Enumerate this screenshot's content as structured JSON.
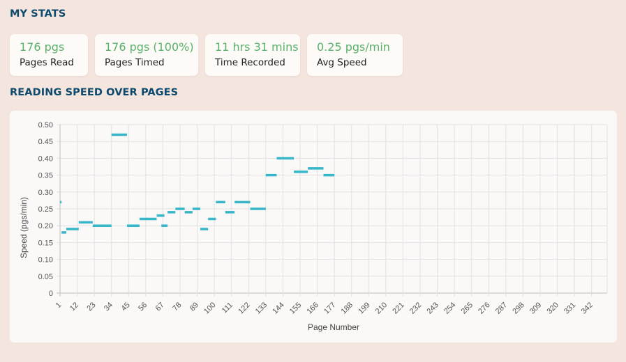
{
  "stats": {
    "title": "MY STATS",
    "cards": [
      {
        "value": "176 pgs",
        "label": "Pages Read"
      },
      {
        "value": "176 pgs (100%)",
        "label": "Pages Timed"
      },
      {
        "value": "11 hrs 31 mins",
        "label": "Time Recorded"
      },
      {
        "value": "0.25 pgs/min",
        "label": "Avg Speed"
      }
    ]
  },
  "chart_data": {
    "type": "line",
    "title": "READING SPEED OVER PAGES",
    "xlabel": "Page Number",
    "ylabel": "Speed (pgs/min)",
    "ylim": [
      0,
      0.5
    ],
    "xlim": [
      1,
      352
    ],
    "yticks": [
      "0",
      "0.05",
      "0.10",
      "0.15",
      "0.20",
      "0.25",
      "0.30",
      "0.35",
      "0.40",
      "0.45",
      "0.50"
    ],
    "xticks": [
      "1",
      "12",
      "23",
      "34",
      "45",
      "56",
      "67",
      "78",
      "89",
      "100",
      "111",
      "122",
      "133",
      "144",
      "155",
      "166",
      "177",
      "188",
      "199",
      "210",
      "221",
      "232",
      "243",
      "254",
      "265",
      "276",
      "287",
      "298",
      "309",
      "320",
      "331",
      "342"
    ],
    "grid": true,
    "color": "#36b6c8",
    "segments": [
      {
        "x0": 1,
        "x1": 2,
        "y": 0.27
      },
      {
        "x0": 2,
        "x1": 5,
        "y": 0.18
      },
      {
        "x0": 5,
        "x1": 13,
        "y": 0.19
      },
      {
        "x0": 13,
        "x1": 22,
        "y": 0.21
      },
      {
        "x0": 22,
        "x1": 34,
        "y": 0.2
      },
      {
        "x0": 34,
        "x1": 44,
        "y": 0.47
      },
      {
        "x0": 44,
        "x1": 52,
        "y": 0.2
      },
      {
        "x0": 52,
        "x1": 63,
        "y": 0.22
      },
      {
        "x0": 63,
        "x1": 68,
        "y": 0.23
      },
      {
        "x0": 66,
        "x1": 70,
        "y": 0.2
      },
      {
        "x0": 70,
        "x1": 75,
        "y": 0.24
      },
      {
        "x0": 75,
        "x1": 81,
        "y": 0.25
      },
      {
        "x0": 81,
        "x1": 86,
        "y": 0.24
      },
      {
        "x0": 86,
        "x1": 91,
        "y": 0.25
      },
      {
        "x0": 91,
        "x1": 96,
        "y": 0.19
      },
      {
        "x0": 96,
        "x1": 101,
        "y": 0.22
      },
      {
        "x0": 101,
        "x1": 107,
        "y": 0.27
      },
      {
        "x0": 107,
        "x1": 113,
        "y": 0.24
      },
      {
        "x0": 113,
        "x1": 123,
        "y": 0.27
      },
      {
        "x0": 123,
        "x1": 133,
        "y": 0.25
      },
      {
        "x0": 133,
        "x1": 140,
        "y": 0.35
      },
      {
        "x0": 140,
        "x1": 151,
        "y": 0.4
      },
      {
        "x0": 151,
        "x1": 160,
        "y": 0.36
      },
      {
        "x0": 160,
        "x1": 170,
        "y": 0.37
      },
      {
        "x0": 170,
        "x1": 177,
        "y": 0.35
      }
    ]
  }
}
